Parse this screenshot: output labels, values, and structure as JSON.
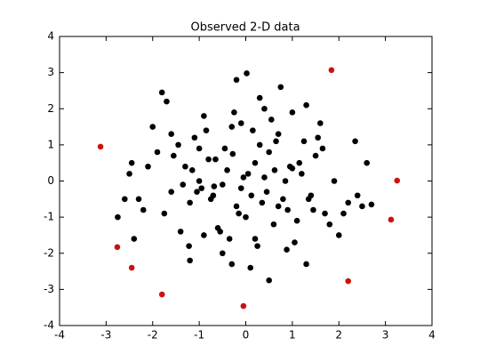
{
  "chart_data": {
    "type": "scatter",
    "title": "Observed 2-D data",
    "xlim": [
      -4,
      4
    ],
    "ylim": [
      -4,
      4
    ],
    "xticks": [
      -4,
      -3,
      -2,
      -1,
      0,
      1,
      2,
      3,
      4
    ],
    "yticks": [
      -4,
      -3,
      -2,
      -1,
      0,
      1,
      2,
      3,
      4
    ],
    "series": [
      {
        "color": "#000000",
        "x": [
          0.02,
          -0.2,
          0.75,
          -1.8,
          -1.7,
          2.35,
          2.6,
          -2.75,
          -2.6,
          -2.4,
          0.5,
          -1.2,
          1.3,
          1.6,
          -0.5,
          0.3,
          -0.9,
          1.0,
          -1.4,
          2.0,
          -2.1,
          0.1,
          0.6,
          -0.3,
          1.9,
          -1.0,
          0.9,
          -0.7,
          1.5,
          -1.6,
          0.2,
          -0.1,
          0.4,
          -0.4,
          0.8,
          -0.8,
          1.2,
          -1.2,
          1.7,
          -1.9,
          0.0,
          0.3,
          -0.6,
          0.7,
          -0.2,
          1.1,
          -1.1,
          0.5,
          -0.5,
          1.4,
          -1.3,
          2.2,
          -2.2,
          0.15,
          -0.35,
          0.85,
          -0.95,
          1.25,
          -1.45,
          1.8,
          -2.0,
          0.45,
          -0.65,
          0.05,
          -0.15,
          0.55,
          -0.75,
          1.05,
          -1.15,
          1.65,
          -1.75,
          2.5,
          -2.5,
          0.25,
          -0.25,
          0.95,
          -1.05,
          1.35,
          -1.35,
          2.1,
          0.35,
          -0.45,
          0.65,
          -0.55,
          1.15,
          -0.85,
          1.45,
          -1.55,
          2.4,
          -2.3,
          -0.05,
          0.12,
          -0.28,
          0.62,
          -0.68,
          0.88,
          -1.22,
          1.55,
          -2.45,
          2.7,
          -0.9,
          1.3,
          -1.6,
          0.4,
          -0.3,
          0.2,
          -0.1,
          0.7,
          -1.0,
          1.0
        ],
        "y": [
          2.98,
          2.8,
          2.6,
          2.45,
          2.2,
          1.1,
          0.5,
          -1.0,
          -0.5,
          -1.6,
          -2.75,
          -2.2,
          -2.3,
          1.6,
          -2.0,
          2.3,
          1.8,
          1.9,
          -1.4,
          -1.5,
          0.4,
          -2.4,
          -1.2,
          1.5,
          0.0,
          0.9,
          -0.8,
          -0.4,
          0.7,
          -0.3,
          0.5,
          -0.2,
          0.1,
          0.3,
          -0.5,
          0.6,
          0.2,
          -0.6,
          -0.9,
          0.8,
          -1.0,
          1.0,
          -1.3,
          1.3,
          -0.7,
          -1.1,
          1.2,
          0.8,
          -0.1,
          -0.4,
          0.4,
          -0.6,
          -0.8,
          1.4,
          -1.6,
          0.0,
          -0.2,
          1.1,
          1.0,
          -1.2,
          1.5,
          -0.3,
          0.6,
          0.2,
          -0.9,
          1.7,
          -0.5,
          -1.7,
          0.3,
          0.9,
          -0.9,
          -0.7,
          0.2,
          -1.8,
          1.9,
          0.4,
          -0.3,
          -0.5,
          -0.1,
          -0.9,
          -0.6,
          0.9,
          1.1,
          -1.4,
          0.5,
          1.4,
          -0.8,
          0.7,
          -0.4,
          -0.5,
          0.1,
          -0.4,
          0.75,
          0.3,
          -0.15,
          -1.9,
          -1.8,
          1.2,
          0.5,
          -0.65,
          -1.5,
          2.1,
          1.3,
          2.0,
          -2.3,
          -1.6,
          1.6,
          -0.7,
          0.0,
          0.35
        ]
      },
      {
        "color": "#cc1111",
        "x": [
          1.84,
          -3.12,
          3.25,
          3.12,
          -2.76,
          -2.45,
          -1.8,
          2.2,
          -0.05
        ],
        "y": [
          3.07,
          0.95,
          0.01,
          -1.07,
          -1.83,
          -2.4,
          -3.14,
          -2.77,
          -3.46
        ]
      }
    ]
  }
}
